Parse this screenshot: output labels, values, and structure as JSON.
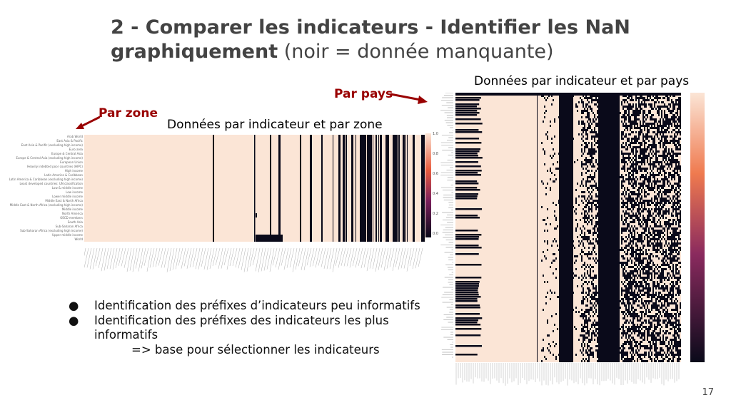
{
  "slide": {
    "title_bold": "2 - Comparer les indicateurs - Identifier les NaN graphiquement",
    "title_rest": "(noir = donnée manquante)",
    "page_number": "17"
  },
  "left_panel": {
    "annotation": "Par zone",
    "caption": "Données par indicateur et par zone",
    "colorbar_ticks": [
      "1.0",
      "0.8",
      "0.6",
      "0.4",
      "0.2",
      "0.0"
    ],
    "row_labels": [
      "Arab World",
      "East Asia & Pacific",
      "East Asia & Pacific (excluding high income)",
      "Euro area",
      "Europe & Central Asia",
      "Europe & Central Asia (excluding high income)",
      "European Union",
      "Heavily indebted poor countries (HIPC)",
      "High income",
      "Latin America & Caribbean",
      "Latin America & Caribbean (excluding high income)",
      "Least developed countries: UN classification",
      "Low & middle income",
      "Low income",
      "Lower middle income",
      "Middle East & North Africa",
      "Middle East & North Africa (excluding high income)",
      "Middle income",
      "North America",
      "OECD members",
      "South Asia",
      "Sub-Saharan Africa",
      "Sub-Saharan Africa (excluding high income)",
      "Upper middle income",
      "World"
    ]
  },
  "right_panel": {
    "annotation": "Par pays",
    "caption": "Données par indicateur et par pays"
  },
  "bullets": [
    "Identification des préfixes d’indicateurs peu informatifs",
    "Identification des préfixes des indicateurs les plus informatifs"
  ],
  "conclusion": "=> base pour sélectionner les indicateurs",
  "colors": {
    "present": "#fbe5d6",
    "missing": "#0a0a1a",
    "accent": "#990000"
  }
}
